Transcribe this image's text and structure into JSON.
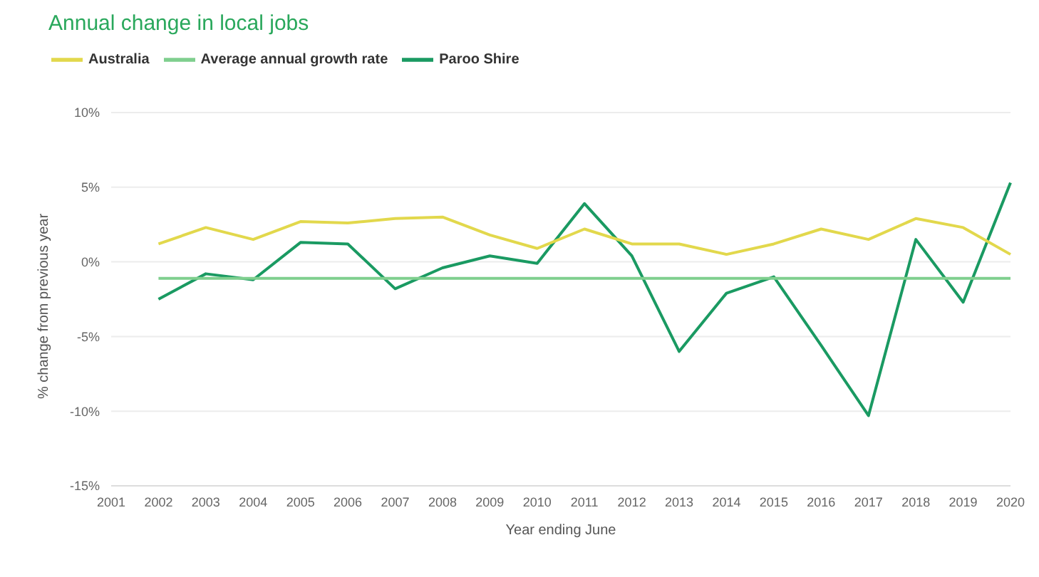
{
  "chart_data": {
    "type": "line",
    "title": "Annual change in local jobs",
    "xlabel": "Year ending June",
    "ylabel": "% change from previous year",
    "categories": [
      "2001",
      "2002",
      "2003",
      "2004",
      "2005",
      "2006",
      "2007",
      "2008",
      "2009",
      "2010",
      "2011",
      "2012",
      "2013",
      "2014",
      "2015",
      "2016",
      "2017",
      "2018",
      "2019",
      "2020"
    ],
    "series": [
      {
        "name": "Paroo Shire",
        "color": "#1a9a62",
        "values": [
          null,
          -2.5,
          -0.8,
          -1.2,
          1.3,
          1.2,
          -1.8,
          -0.4,
          0.4,
          -0.1,
          3.9,
          0.4,
          -6.0,
          -2.1,
          -1.0,
          -5.6,
          -10.3,
          1.5,
          -2.7,
          5.3
        ]
      },
      {
        "name": "Australia",
        "color": "#e2d84c",
        "values": [
          null,
          1.2,
          2.3,
          1.5,
          2.7,
          2.6,
          2.9,
          3.0,
          1.8,
          0.9,
          2.2,
          1.2,
          1.2,
          0.5,
          1.2,
          2.2,
          1.5,
          2.9,
          2.3,
          0.5
        ]
      },
      {
        "name": "Average annual growth rate",
        "color": "#7fcf8e",
        "values": [
          null,
          -1.1,
          -1.1,
          -1.1,
          -1.1,
          -1.1,
          -1.1,
          -1.1,
          -1.1,
          -1.1,
          -1.1,
          -1.1,
          -1.1,
          -1.1,
          -1.1,
          -1.1,
          -1.1,
          -1.1,
          -1.1,
          -1.1
        ]
      }
    ],
    "ylim": [
      -15,
      10
    ],
    "yticks": [
      {
        "value": -15,
        "label": "-15%"
      },
      {
        "value": -10,
        "label": "-10%"
      },
      {
        "value": -5,
        "label": "-5%"
      },
      {
        "value": 0,
        "label": "0%"
      },
      {
        "value": 5,
        "label": "5%"
      },
      {
        "value": 10,
        "label": "10%"
      }
    ],
    "grid": "y",
    "legend": "top left",
    "marker": "none",
    "line_style": "solid"
  }
}
